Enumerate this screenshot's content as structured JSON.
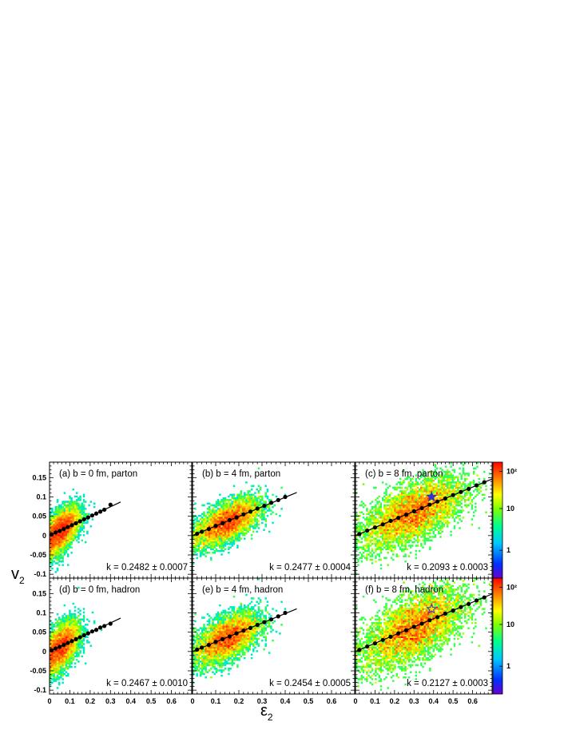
{
  "chart_data": {
    "type": "heatmap",
    "xlabel": "ε",
    "xlabel_sub": "2",
    "ylabel": "v",
    "ylabel_sub": "2",
    "xlim": [
      0,
      0.7
    ],
    "ylim": [
      -0.11,
      0.19
    ],
    "x_ticks": [
      "0",
      "0.1",
      "0.2",
      "0.3",
      "0.4",
      "0.5",
      "0.6"
    ],
    "y_ticks": [
      "-0.1",
      "-0.05",
      "0",
      "0.05",
      "0.1",
      "0.15"
    ],
    "colorbar_ticks": [
      "1",
      "10",
      "10²"
    ],
    "colors": {
      "high": "#ff0000",
      "mid": "#ffff00",
      "low": "#00ff80",
      "min": "#0000ff",
      "fit_line": "#000000",
      "star": "#3333cc"
    },
    "panels": [
      {
        "label": "(a)   b = 0 fm, parton",
        "k": "k = 0.2482 ± 0.0007",
        "slope": 0.2482,
        "profile_x": [
          0.01,
          0.03,
          0.05,
          0.07,
          0.09,
          0.11,
          0.13,
          0.15,
          0.17,
          0.19,
          0.21,
          0.23,
          0.25,
          0.27,
          0.3
        ],
        "profile_y": [
          0.003,
          0.008,
          0.012,
          0.017,
          0.022,
          0.027,
          0.032,
          0.037,
          0.042,
          0.047,
          0.052,
          0.057,
          0.062,
          0.067,
          0.08
        ],
        "star": null
      },
      {
        "label": "(b)   b = 4 fm, parton",
        "k": "k = 0.2477 ± 0.0004",
        "slope": 0.2477,
        "profile_x": [
          0.02,
          0.04,
          0.07,
          0.1,
          0.13,
          0.16,
          0.19,
          0.22,
          0.25,
          0.28,
          0.31,
          0.34,
          0.37,
          0.4
        ],
        "profile_y": [
          0.005,
          0.01,
          0.017,
          0.025,
          0.032,
          0.04,
          0.047,
          0.055,
          0.062,
          0.07,
          0.077,
          0.085,
          0.092,
          0.1
        ],
        "star": null
      },
      {
        "label": "(c)   b = 8 fm, parton",
        "k": "k = 0.2093 ± 0.0003",
        "slope": 0.2093,
        "profile_x": [
          0.02,
          0.06,
          0.1,
          0.14,
          0.18,
          0.22,
          0.26,
          0.3,
          0.34,
          0.38,
          0.42,
          0.46,
          0.5,
          0.54,
          0.58,
          0.62,
          0.66
        ],
        "profile_y": [
          0.004,
          0.013,
          0.021,
          0.029,
          0.038,
          0.046,
          0.054,
          0.063,
          0.071,
          0.08,
          0.088,
          0.096,
          0.105,
          0.113,
          0.121,
          0.13,
          0.138
        ],
        "star": {
          "x": 0.39,
          "y": 0.1,
          "filled": true
        }
      },
      {
        "label": "(d)   b = 0 fm, hadron",
        "k": "k = 0.2467 ± 0.0010",
        "slope": 0.2467,
        "profile_x": [
          0.01,
          0.03,
          0.05,
          0.07,
          0.09,
          0.11,
          0.13,
          0.15,
          0.17,
          0.19,
          0.21,
          0.23,
          0.25,
          0.27,
          0.3
        ],
        "profile_y": [
          0.003,
          0.008,
          0.012,
          0.017,
          0.022,
          0.027,
          0.032,
          0.037,
          0.042,
          0.047,
          0.052,
          0.056,
          0.062,
          0.066,
          0.072
        ],
        "star": null
      },
      {
        "label": "(e)   b = 4 fm, hadron",
        "k": "k = 0.2454 ± 0.0005",
        "slope": 0.2454,
        "profile_x": [
          0.02,
          0.04,
          0.07,
          0.1,
          0.13,
          0.16,
          0.19,
          0.22,
          0.25,
          0.28,
          0.31,
          0.34,
          0.37,
          0.4
        ],
        "profile_y": [
          0.005,
          0.01,
          0.017,
          0.025,
          0.032,
          0.039,
          0.047,
          0.054,
          0.061,
          0.069,
          0.076,
          0.083,
          0.091,
          0.1
        ],
        "star": null
      },
      {
        "label": "(f)   b = 8 fm, hadron",
        "k": "k = 0.2127 ± 0.0003",
        "slope": 0.2127,
        "profile_x": [
          0.02,
          0.06,
          0.1,
          0.14,
          0.18,
          0.22,
          0.26,
          0.3,
          0.34,
          0.38,
          0.42,
          0.46,
          0.5,
          0.54,
          0.58,
          0.62,
          0.66
        ],
        "profile_y": [
          0.004,
          0.013,
          0.021,
          0.03,
          0.038,
          0.047,
          0.055,
          0.064,
          0.072,
          0.081,
          0.089,
          0.098,
          0.106,
          0.115,
          0.123,
          0.132,
          0.14
        ],
        "star": {
          "x": 0.39,
          "y": 0.11,
          "filled": false
        }
      }
    ]
  }
}
